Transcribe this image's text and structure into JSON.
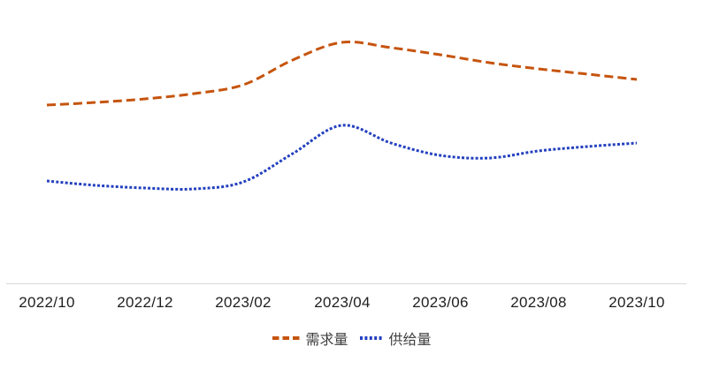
{
  "chart_data": {
    "type": "line",
    "title": "",
    "xlabel": "",
    "ylabel": "",
    "y_axis_shown": false,
    "grid": false,
    "legend_position": "bottom",
    "axis_line_color": "#d9d9d9",
    "categories": [
      "2022/10",
      "2022/11",
      "2022/12",
      "2023/01",
      "2023/02",
      "2023/03",
      "2023/04",
      "2023/05",
      "2023/06",
      "2023/07",
      "2023/08",
      "2023/09",
      "2023/10"
    ],
    "x_tick_labels": [
      "2022/10",
      "2022/12",
      "2023/02",
      "2023/04",
      "2023/06",
      "2023/08",
      "2023/10"
    ],
    "series": [
      {
        "name": "需求量",
        "style": "dashed",
        "color": "#c6540e",
        "values": [
          202,
          205,
          209,
          215,
          225,
          253,
          273,
          267,
          259,
          250,
          243,
          237,
          231
        ]
      },
      {
        "name": "供给量",
        "style": "dotted",
        "color": "#2340bf",
        "values": [
          116,
          111,
          108,
          107,
          115,
          147,
          179,
          159,
          145,
          142,
          150,
          155,
          159
        ]
      }
    ]
  },
  "legend": {
    "items": [
      {
        "label": "需求量"
      },
      {
        "label": "供给量"
      }
    ]
  }
}
